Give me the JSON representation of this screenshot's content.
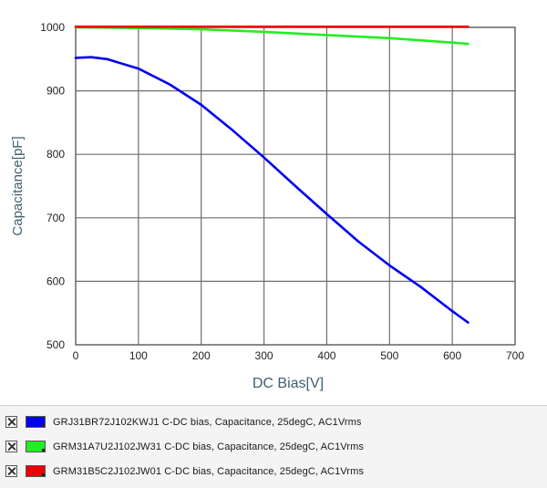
{
  "chart_data": {
    "type": "line",
    "xlabel": "DC Bias[V]",
    "ylabel": "Capacitance[pF]",
    "xlim": [
      0,
      700
    ],
    "ylim": [
      500,
      1000
    ],
    "xticks": [
      0,
      100,
      200,
      300,
      400,
      500,
      600,
      700
    ],
    "yticks": [
      500,
      600,
      700,
      800,
      900,
      1000
    ],
    "grid": true,
    "legend_position": "bottom",
    "series": [
      {
        "name": "GRJ31BR72J102KWJ1   C-DC bias, Capacitance, 25degC, AC1Vrms",
        "color": "#0000ee",
        "x": [
          0,
          25,
          50,
          100,
          150,
          200,
          250,
          300,
          350,
          400,
          450,
          500,
          550,
          600,
          625
        ],
        "y": [
          952,
          953,
          950,
          935,
          910,
          878,
          838,
          795,
          750,
          706,
          663,
          625,
          591,
          553,
          535
        ]
      },
      {
        "name": "GRM31A7U2J102JW31   C-DC bias, Capacitance, 25degC, AC1Vrms",
        "color": "#22ee22",
        "x": [
          0,
          100,
          200,
          300,
          400,
          500,
          600,
          625
        ],
        "y": [
          1000,
          999,
          997,
          993,
          988,
          983,
          976,
          974
        ]
      },
      {
        "name": "GRM31B5C2J102JW01   C-DC bias, Capacitance, 25degC, AC1Vrms",
        "color": "#ee0000",
        "x": [
          0,
          625
        ],
        "y": [
          1001,
          1001
        ]
      }
    ]
  }
}
